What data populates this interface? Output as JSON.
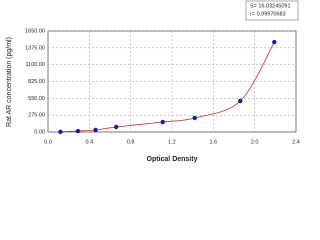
{
  "chart_data": {
    "type": "scatter",
    "x_label": "Optical Density",
    "y_label": "Rat AR concentration (pg/ml)",
    "annotations": [
      "S= 16.03245091",
      "r= 0.99970683"
    ],
    "x": [
      0.12,
      0.29,
      0.46,
      0.66,
      1.11,
      1.42,
      1.86,
      2.19
    ],
    "series": [
      {
        "color": "#1c1c9c",
        "curve_color": "#c0392b",
        "values": [
          3,
          16,
          33,
          82,
          163,
          229,
          506,
          1470
        ]
      }
    ],
    "xlim": [
      0,
      2.4
    ],
    "xticks": [
      {
        "value": 0,
        "label": "0.0"
      },
      0.4,
      0.8,
      1.2,
      1.6,
      {
        "value": 2,
        "label": "2.0"
      },
      2.4
    ],
    "ylim": [
      0,
      1650
    ],
    "yticks": [
      {
        "value": 0,
        "label": "0.00"
      },
      {
        "value": 275,
        "label": "275.00"
      },
      {
        "value": 550,
        "label": "550.00"
      },
      {
        "value": 825,
        "label": "825.00"
      },
      {
        "value": 1100,
        "label": "1100.00"
      },
      {
        "value": 1375,
        "label": "1375.00"
      },
      {
        "value": 1650,
        "label": "1650.00"
      }
    ],
    "grid": true
  }
}
